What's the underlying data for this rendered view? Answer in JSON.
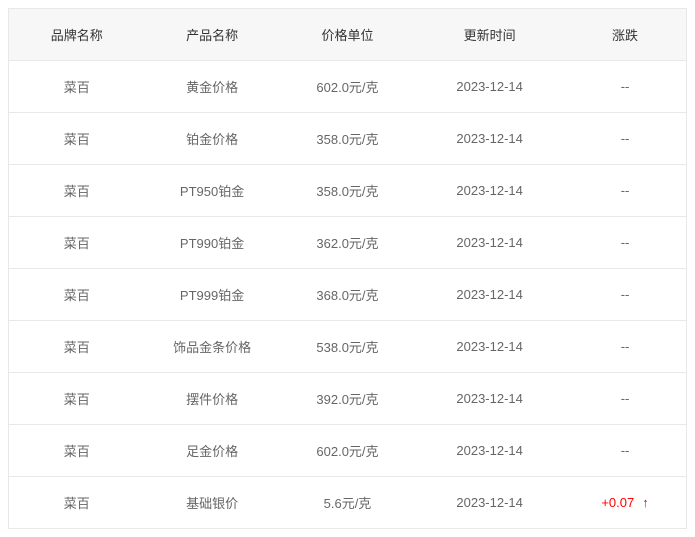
{
  "table": {
    "type": "table",
    "columns": [
      "品牌名称",
      "产品名称",
      "价格单位",
      "更新时间",
      "涨跌"
    ],
    "column_widths": [
      "20%",
      "20%",
      "20%",
      "22%",
      "18%"
    ],
    "header_bg": "#f7f7f7",
    "header_color": "#333333",
    "cell_color": "#666666",
    "border_color": "#e8e8e8",
    "up_color": "#ff0000",
    "font_size": 13,
    "rows": [
      {
        "brand": "菜百",
        "product": "黄金价格",
        "price": "602.0元/克",
        "updated": "2023-12-14",
        "change": "--",
        "direction": "none"
      },
      {
        "brand": "菜百",
        "product": "铂金价格",
        "price": "358.0元/克",
        "updated": "2023-12-14",
        "change": "--",
        "direction": "none"
      },
      {
        "brand": "菜百",
        "product": "PT950铂金",
        "price": "358.0元/克",
        "updated": "2023-12-14",
        "change": "--",
        "direction": "none"
      },
      {
        "brand": "菜百",
        "product": "PT990铂金",
        "price": "362.0元/克",
        "updated": "2023-12-14",
        "change": "--",
        "direction": "none"
      },
      {
        "brand": "菜百",
        "product": "PT999铂金",
        "price": "368.0元/克",
        "updated": "2023-12-14",
        "change": "--",
        "direction": "none"
      },
      {
        "brand": "菜百",
        "product": "饰品金条价格",
        "price": "538.0元/克",
        "updated": "2023-12-14",
        "change": "--",
        "direction": "none"
      },
      {
        "brand": "菜百",
        "product": "摆件价格",
        "price": "392.0元/克",
        "updated": "2023-12-14",
        "change": "--",
        "direction": "none"
      },
      {
        "brand": "菜百",
        "product": "足金价格",
        "price": "602.0元/克",
        "updated": "2023-12-14",
        "change": "--",
        "direction": "none"
      },
      {
        "brand": "菜百",
        "product": "基础银价",
        "price": "5.6元/克",
        "updated": "2023-12-14",
        "change": "+0.07",
        "direction": "up"
      }
    ],
    "arrow_up_glyph": "↑"
  }
}
